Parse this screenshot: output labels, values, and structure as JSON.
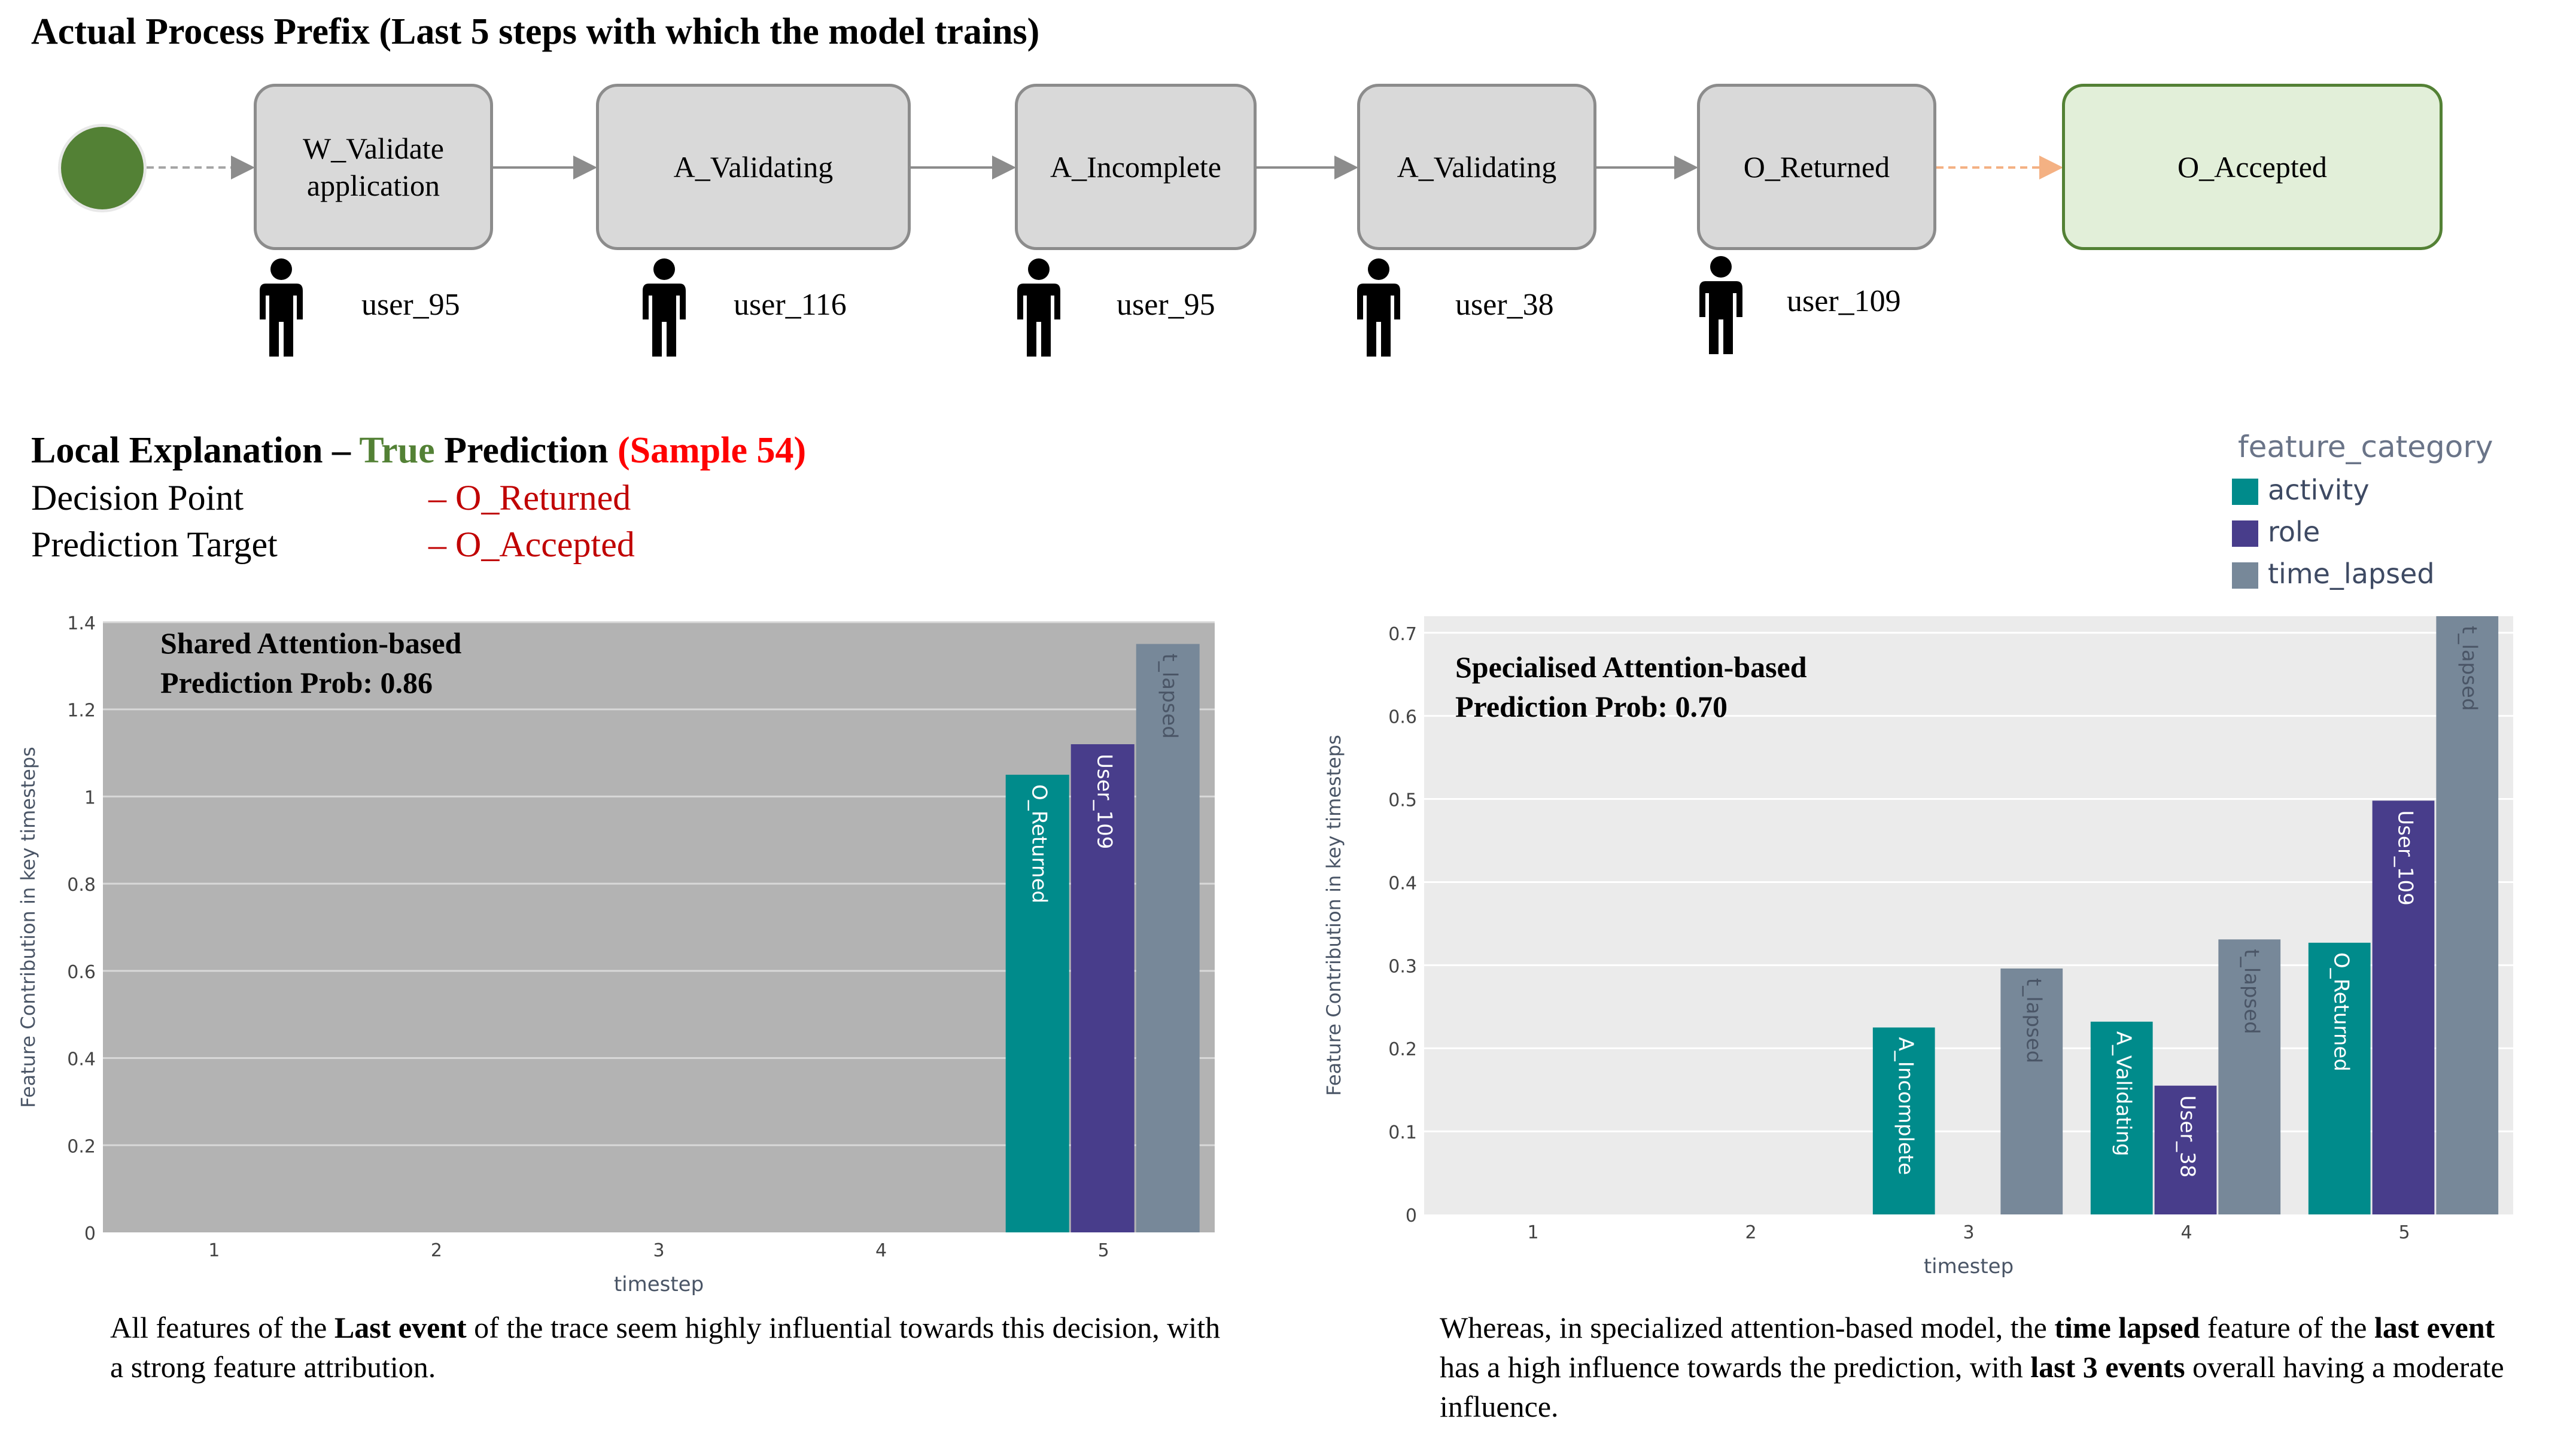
{
  "header": {
    "title": "Actual Process Prefix (Last 5 steps with which the model trains)"
  },
  "process": {
    "steps": [
      {
        "activity_line1": "W_Validate",
        "activity_line2": "application",
        "user": "user_95"
      },
      {
        "activity_line1": "A_Validating",
        "activity_line2": "",
        "user": "user_116"
      },
      {
        "activity_line1": "A_Incomplete",
        "activity_line2": "",
        "user": "user_95"
      },
      {
        "activity_line1": "A_Validating",
        "activity_line2": "",
        "user": "user_38"
      },
      {
        "activity_line1": "O_Returned",
        "activity_line2": "",
        "user": "user_109"
      }
    ],
    "target": "O_Accepted"
  },
  "explanation": {
    "prefix": "Local Explanation – ",
    "true_word": "True",
    "prediction_word": " Prediction ",
    "sample": "(Sample 54)",
    "decision_point_label": "Decision Point",
    "decision_point_value": "– O_Returned",
    "prediction_target_label": "Prediction Target",
    "prediction_target_value": "– O_Accepted"
  },
  "legend": {
    "title": "feature_category",
    "items": [
      {
        "label": "activity",
        "color": "#008b8b"
      },
      {
        "label": "role",
        "color": "#483d8b"
      },
      {
        "label": "time_lapsed",
        "color": "#778899"
      }
    ]
  },
  "colors": {
    "accent_green": "#538135",
    "accent_red": "#c00000",
    "activity": "#008b8b",
    "role": "#483d8b",
    "time_lapsed": "#778899"
  },
  "chart_data": [
    {
      "type": "bar",
      "title": "Shared Attention-based",
      "subtitle": "Prediction Prob: 0.86",
      "xlabel": "timestep",
      "ylabel": "Feature Contribution in key timesteps",
      "categories": [
        "1",
        "2",
        "3",
        "4",
        "5"
      ],
      "ylim": [
        0,
        1.4
      ],
      "yticks": [
        "0",
        "0.2",
        "0.4",
        "0.6",
        "0.8",
        "1",
        "1.2",
        "1.4"
      ],
      "series": [
        {
          "name": "activity",
          "values": [
            0,
            0,
            0,
            0,
            1.05
          ],
          "labels": [
            "",
            "",
            "",
            "",
            "O_Returned"
          ]
        },
        {
          "name": "role",
          "values": [
            0,
            0,
            0,
            0,
            1.12
          ],
          "labels": [
            "",
            "",
            "",
            "",
            "User_109"
          ]
        },
        {
          "name": "time_lapsed",
          "values": [
            0,
            0,
            0,
            0,
            1.35
          ],
          "labels": [
            "",
            "",
            "",
            "",
            "t_lapsed"
          ]
        }
      ]
    },
    {
      "type": "bar",
      "title": "Specialised Attention-based",
      "subtitle": "Prediction Prob: 0.70",
      "xlabel": "timestep",
      "ylabel": "Feature Contribution in key timesteps",
      "categories": [
        "1",
        "2",
        "3",
        "4",
        "5"
      ],
      "ylim": [
        0,
        0.72
      ],
      "yticks": [
        "0",
        "0.1",
        "0.2",
        "0.3",
        "0.4",
        "0.5",
        "0.6",
        "0.7"
      ],
      "series": [
        {
          "name": "activity",
          "values": [
            0,
            0,
            0.225,
            0.232,
            0.327
          ],
          "labels": [
            "",
            "",
            "A_Incomplete",
            "A_Validating",
            "O_Returned"
          ]
        },
        {
          "name": "role",
          "values": [
            0,
            0,
            0,
            0.155,
            0.498
          ],
          "labels": [
            "",
            "",
            "",
            "User_38",
            "User_109"
          ]
        },
        {
          "name": "time_lapsed",
          "values": [
            0,
            0,
            0.296,
            0.331,
            0.72
          ],
          "labels": [
            "",
            "",
            "t_lapsed",
            "t_lapsed",
            "t_lapsed"
          ]
        }
      ]
    }
  ],
  "captions": {
    "left": {
      "t1": "All features of the ",
      "b1": "Last event",
      "t2": " of the trace seem highly influential towards this decision, with a strong feature attribution."
    },
    "right": {
      "t1": "Whereas, in specialized attention-based model, the ",
      "b1": "time lapsed",
      "t2": " feature of the ",
      "b2": "last event",
      "t3": " has a high influence towards the prediction, with ",
      "b3": "last 3 events",
      "t4": " overall having a moderate influence."
    }
  }
}
